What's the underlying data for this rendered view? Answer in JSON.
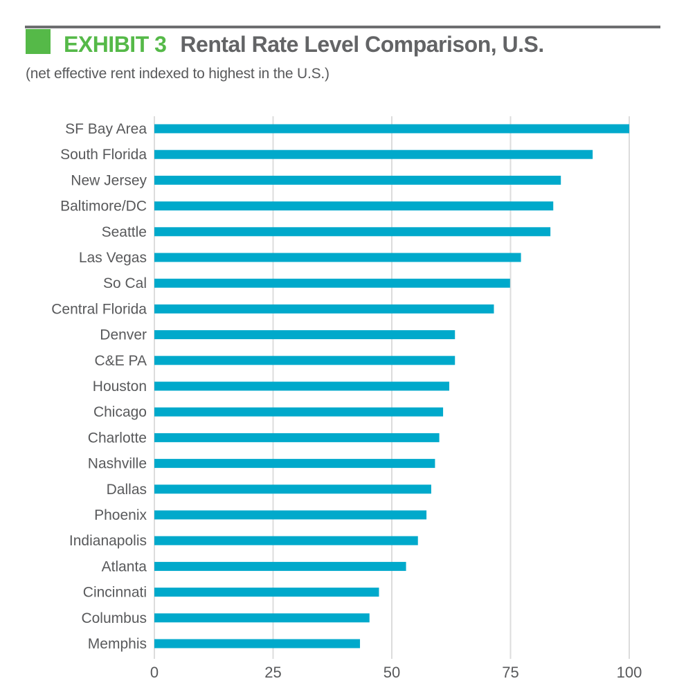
{
  "header": {
    "exhibit_label": "EXHIBIT 3",
    "title": "Rental Rate Level Comparison, U.S.",
    "subtitle": "(net effective rent indexed to highest in the U.S.)",
    "accent_color": "#55b948",
    "title_color": "#636466"
  },
  "chart_data": {
    "type": "bar",
    "orientation": "horizontal",
    "title": "EXHIBIT 3 Rental Rate Level Comparison, U.S.",
    "subtitle": "(net effective rent indexed to highest in the U.S.)",
    "xlabel": "",
    "ylabel": "",
    "categories": [
      "SF Bay Area",
      "South Florida",
      "New Jersey",
      "Baltimore/DC",
      "Seattle",
      "Las Vegas",
      "So Cal",
      "Central Florida",
      "Denver",
      "C&E PA",
      "Houston",
      "Chicago",
      "Charlotte",
      "Nashville",
      "Dallas",
      "Phoenix",
      "Indianapolis",
      "Atlanta",
      "Cincinnati",
      "Columbus",
      "Memphis"
    ],
    "values": [
      100,
      92.3,
      85.6,
      84.0,
      83.4,
      77.2,
      74.9,
      71.5,
      63.3,
      63.3,
      62.1,
      60.8,
      60.0,
      59.1,
      58.3,
      57.3,
      55.5,
      53.0,
      47.3,
      45.3,
      43.3
    ],
    "xlim": [
      0,
      100
    ],
    "xticks": [
      0,
      25,
      50,
      75,
      100
    ],
    "xtick_labels": [
      "0",
      "25",
      "50",
      "75",
      "100"
    ],
    "grid": "vertical",
    "legend": "none",
    "bar_color": "#00a9cb",
    "grid_color": "#dcdcdc"
  }
}
